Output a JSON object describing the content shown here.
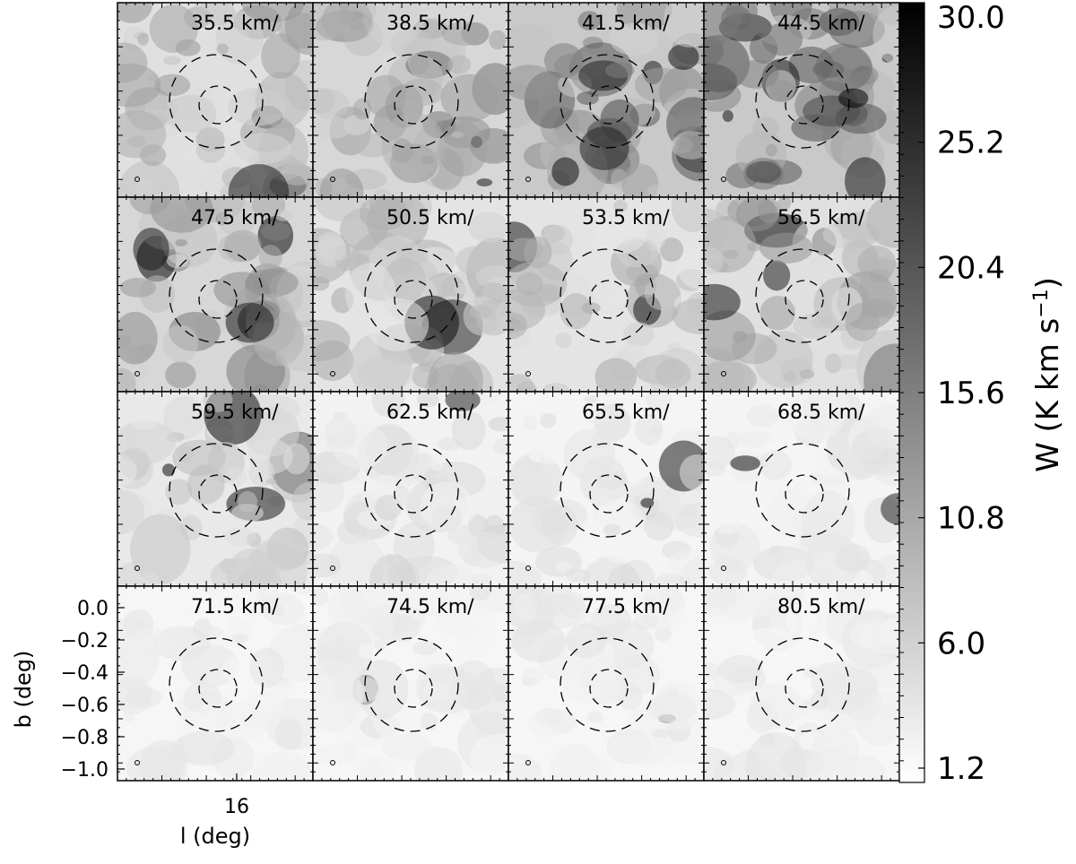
{
  "chart_data": {
    "type": "heatmap",
    "layout": "4x4 grid of channel maps",
    "panels": [
      {
        "label": "35.5 km/",
        "velocity": 35.5,
        "emission_level": 0.35
      },
      {
        "label": "38.5 km/",
        "velocity": 38.5,
        "emission_level": 0.45
      },
      {
        "label": "41.5 km/",
        "velocity": 41.5,
        "emission_level": 0.6
      },
      {
        "label": "44.5 km/",
        "velocity": 44.5,
        "emission_level": 0.6
      },
      {
        "label": "47.5 km/",
        "velocity": 47.5,
        "emission_level": 0.45
      },
      {
        "label": "50.5 km/",
        "velocity": 50.5,
        "emission_level": 0.3
      },
      {
        "label": "53.5 km/",
        "velocity": 53.5,
        "emission_level": 0.3
      },
      {
        "label": "56.5 km/",
        "velocity": 56.5,
        "emission_level": 0.35
      },
      {
        "label": "59.5 km/",
        "velocity": 59.5,
        "emission_level": 0.25
      },
      {
        "label": "62.5 km/",
        "velocity": 62.5,
        "emission_level": 0.15
      },
      {
        "label": "65.5 km/",
        "velocity": 65.5,
        "emission_level": 0.12
      },
      {
        "label": "68.5 km/",
        "velocity": 68.5,
        "emission_level": 0.12
      },
      {
        "label": "71.5 km/",
        "velocity": 71.5,
        "emission_level": 0.1
      },
      {
        "label": "74.5 km/",
        "velocity": 74.5,
        "emission_level": 0.1
      },
      {
        "label": "77.5 km/",
        "velocity": 77.5,
        "emission_level": 0.1
      },
      {
        "label": "80.5 km/",
        "velocity": 80.5,
        "emission_level": 0.1
      }
    ],
    "xlabel": "l (deg)",
    "x_ticks": [
      "16"
    ],
    "ylabel": "b (deg)",
    "y_ticks": [
      "0.0",
      "−0.2",
      "−0.4",
      "−0.6",
      "−0.8",
      "−1.0"
    ],
    "ylim": [
      -1.1,
      0.1
    ],
    "colorbar": {
      "label": "W (K km s",
      "label_superscript": "−1",
      "label_close": ")",
      "ticks": [
        "30.0",
        "25.2",
        "20.4",
        "15.6",
        "10.8",
        "6.0",
        "1.2"
      ],
      "range": [
        1.2,
        30.0
      ],
      "colormap": "white to black"
    },
    "overlays": {
      "outer_circle": "dashed",
      "inner_circle": "dashed",
      "beam_marker": "small circle lower-left"
    }
  },
  "colors": {
    "background": "#ffffff",
    "ink": "#000000"
  }
}
